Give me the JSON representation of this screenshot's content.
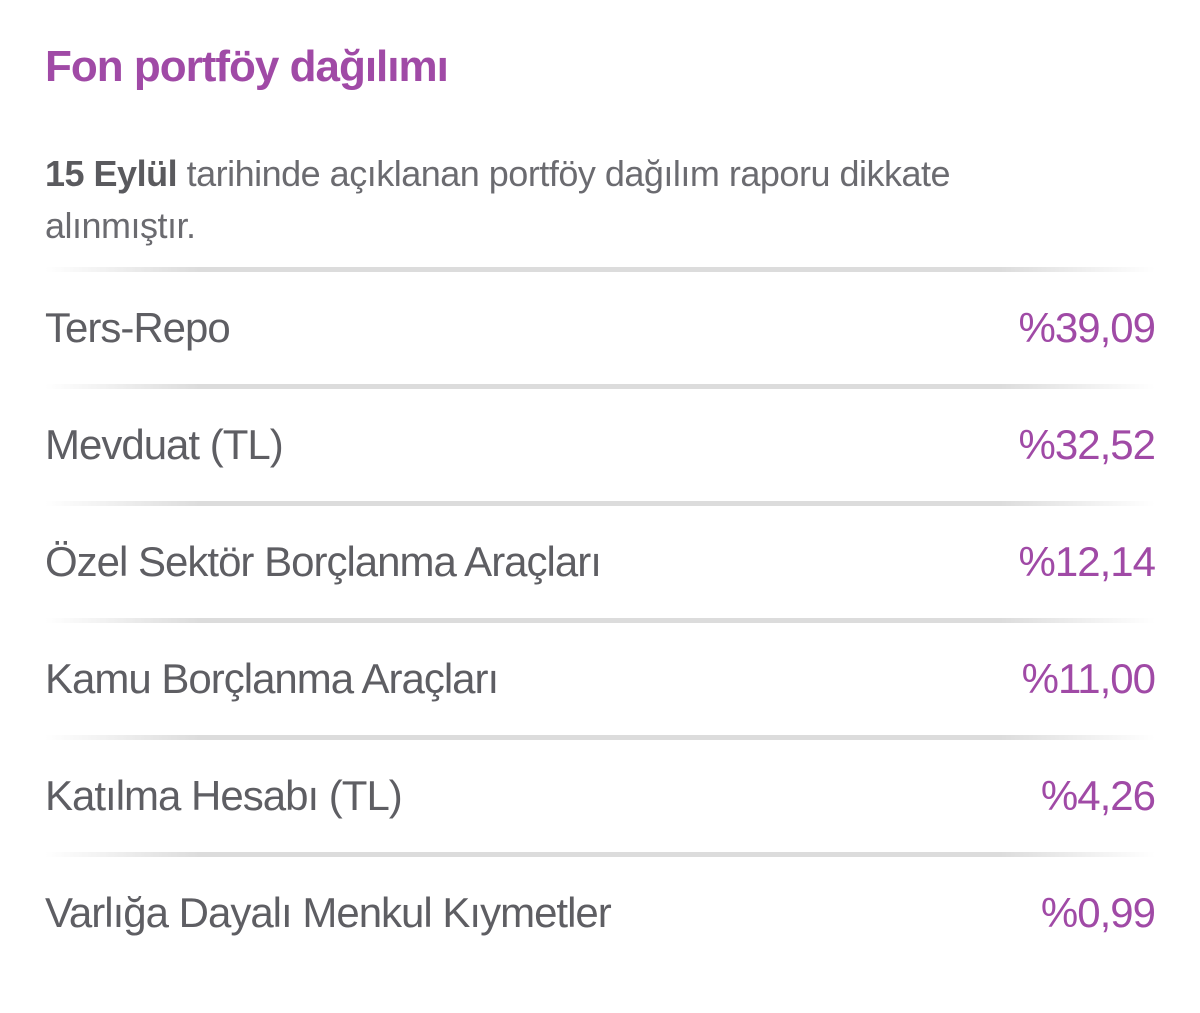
{
  "title": "Fon portföy dağılımı",
  "intro": {
    "date": "15 Eylül",
    "text": " tarihinde açıklanan portföy dağılım raporu dikkate alınmıştır."
  },
  "allocations": [
    {
      "label": "Ters-Repo",
      "value": "%39,09"
    },
    {
      "label": "Mevduat (TL)",
      "value": "%32,52"
    },
    {
      "label": "Özel Sektör Borçlanma Araçları",
      "value": "%12,14"
    },
    {
      "label": "Kamu Borçlanma Araçları",
      "value": "%11,00"
    },
    {
      "label": "Katılma Hesabı (TL)",
      "value": "%4,26"
    },
    {
      "label": "Varlığa Dayalı Menkul Kıymetler",
      "value": "%0,99"
    }
  ],
  "colors": {
    "accent": "#a04aa6",
    "text": "#5e5e63",
    "divider": "#dcdcdc"
  }
}
